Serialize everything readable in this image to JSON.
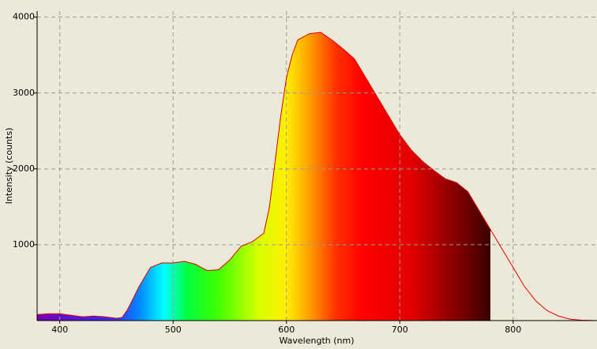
{
  "chart_data": {
    "type": "area",
    "x_label": "Wavelength (nm)",
    "y_label": "Intensity (counts)",
    "x": [
      380,
      390,
      400,
      410,
      420,
      430,
      440,
      450,
      455,
      460,
      470,
      480,
      490,
      500,
      510,
      520,
      530,
      540,
      550,
      560,
      570,
      580,
      585,
      590,
      595,
      600,
      605,
      610,
      620,
      630,
      640,
      650,
      660,
      670,
      680,
      690,
      700,
      710,
      720,
      730,
      740,
      750,
      760,
      770,
      780,
      790,
      800,
      810,
      820,
      830,
      840,
      850,
      860,
      874
    ],
    "values": [
      80,
      90,
      90,
      70,
      50,
      60,
      50,
      30,
      40,
      150,
      450,
      700,
      760,
      760,
      780,
      740,
      660,
      670,
      800,
      980,
      1040,
      1150,
      1500,
      2100,
      2700,
      3200,
      3500,
      3700,
      3780,
      3800,
      3700,
      3580,
      3450,
      3200,
      2950,
      2700,
      2450,
      2250,
      2100,
      1980,
      1870,
      1820,
      1700,
      1450,
      1200,
      950,
      700,
      450,
      260,
      130,
      60,
      20,
      5,
      0
    ],
    "color": "#e00000",
    "xlim": [
      380,
      874
    ],
    "ylim": [
      0,
      4080
    ],
    "xticks": [
      400,
      500,
      600,
      700,
      800
    ],
    "yticks": [
      1000,
      2000,
      3000,
      4000
    ],
    "grid": true
  }
}
